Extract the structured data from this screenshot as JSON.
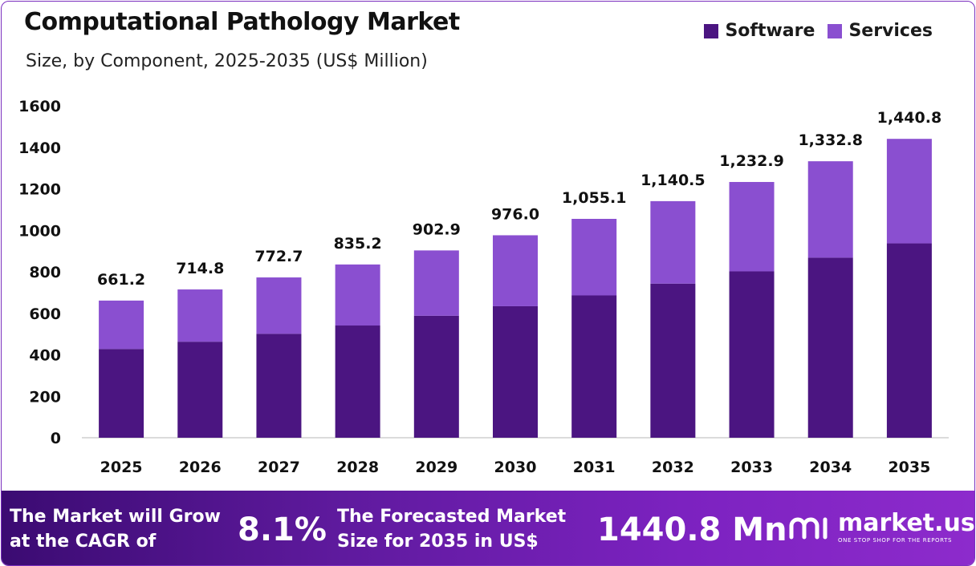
{
  "title": "Computational Pathology Market",
  "subtitle": "Size, by Component, 2025-2035 (US$ Million)",
  "colors": {
    "software": "#4b1581",
    "services": "#8a4fd0",
    "axis": "#cfcfcf"
  },
  "chart_data": {
    "type": "bar",
    "stacked": true,
    "categories": [
      "2025",
      "2026",
      "2027",
      "2028",
      "2029",
      "2030",
      "2031",
      "2032",
      "2033",
      "2034",
      "2035"
    ],
    "series": [
      {
        "name": "Software",
        "values": [
          428,
          463,
          501,
          541,
          588,
          634,
          686,
          743,
          802,
          868,
          937
        ]
      },
      {
        "name": "Services",
        "values": [
          233.2,
          251.8,
          271.7,
          294.2,
          314.9,
          342.0,
          369.1,
          397.5,
          430.9,
          464.8,
          503.8
        ]
      }
    ],
    "totals": [
      661.2,
      714.8,
      772.7,
      835.2,
      902.9,
      976.0,
      1055.1,
      1140.5,
      1232.9,
      1332.8,
      1440.8
    ],
    "total_labels": [
      "661.2",
      "714.8",
      "772.7",
      "835.2",
      "902.9",
      "976.0",
      "1,055.1",
      "1,140.5",
      "1,232.9",
      "1,332.8",
      "1,440.8"
    ],
    "yticks": [
      "0",
      "200",
      "400",
      "600",
      "800",
      "1000",
      "1200",
      "1400",
      "1600"
    ],
    "ylim": [
      0,
      1600
    ],
    "legend_position": "top-right",
    "grid": false
  },
  "footer": {
    "cagr_text": "The Market will Grow\nat the CAGR of",
    "cagr_value": "8.1%",
    "forecast_text": "The Forecasted Market\nSize for 2035 in US$",
    "forecast_value": "1440.8 Mn",
    "brand_name": "market.us",
    "brand_tagline": "ONE STOP SHOP FOR THE REPORTS"
  }
}
